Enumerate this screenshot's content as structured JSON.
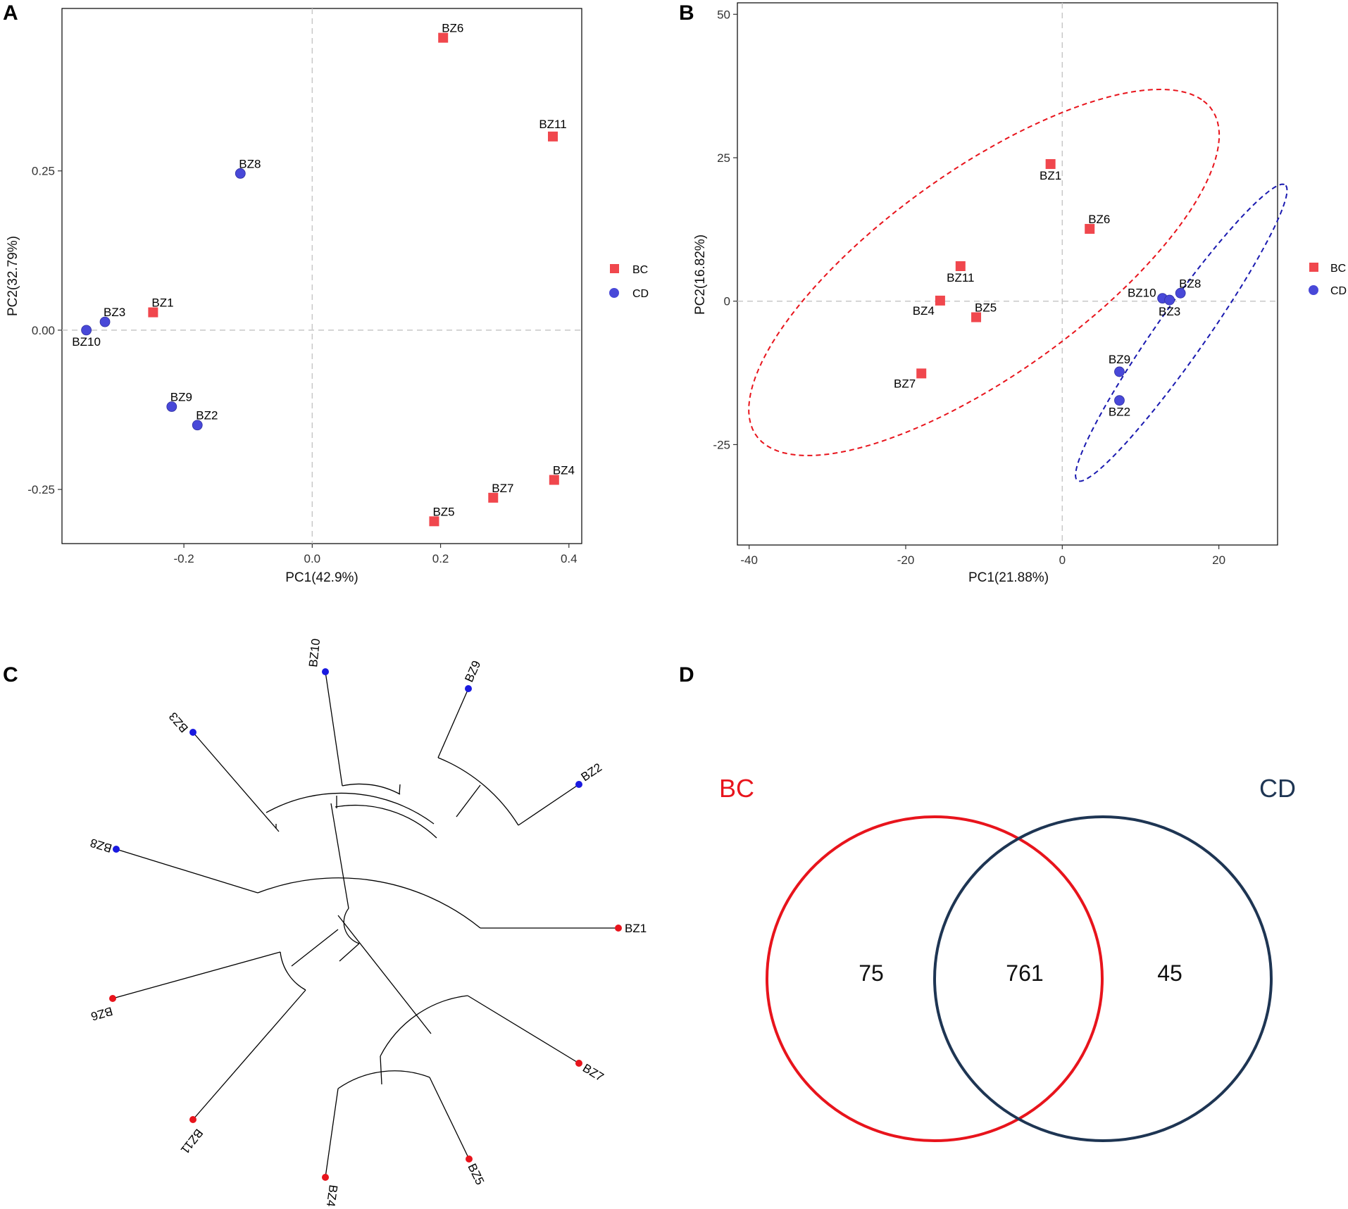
{
  "colors": {
    "BC": "#f0474d",
    "CD": "#4848d8",
    "BC_tree": "#e8141c",
    "CD_tree": "#1a1ae0",
    "venn_BC": "#e8141c",
    "venn_CD": "#1e3553"
  },
  "chart_data": [
    {
      "panel": "A",
      "type": "scatter",
      "xlabel": "PC1(42.9%)",
      "ylabel": "PC2(32.79%)",
      "xlim": [
        -0.39,
        0.42
      ],
      "ylim": [
        -0.335,
        0.505
      ],
      "xticks": [
        -0.2,
        0.0,
        0.2,
        0.4
      ],
      "xtick_labels": [
        "-0.2",
        "0.0",
        "0.2",
        "0.4"
      ],
      "yticks": [
        -0.25,
        0.0,
        0.25
      ],
      "ytick_labels": [
        "-0.25",
        "0.00",
        "0.25"
      ],
      "legend": [
        {
          "key": "BC",
          "label": "BC",
          "shape": "square"
        },
        {
          "key": "CD",
          "label": "CD",
          "shape": "circle"
        }
      ],
      "points": [
        {
          "label": "BZ6",
          "group": "BC",
          "x": 0.204,
          "y": 0.459,
          "lpos": "above-right"
        },
        {
          "label": "BZ11",
          "group": "BC",
          "x": 0.375,
          "y": 0.304,
          "lpos": "above"
        },
        {
          "label": "BZ8",
          "group": "CD",
          "x": -0.112,
          "y": 0.246,
          "lpos": "above-right"
        },
        {
          "label": "BZ1",
          "group": "BC",
          "x": -0.248,
          "y": 0.028,
          "lpos": "above-right"
        },
        {
          "label": "BZ3",
          "group": "CD",
          "x": -0.323,
          "y": 0.013,
          "lpos": "above-right"
        },
        {
          "label": "BZ10",
          "group": "CD",
          "x": -0.352,
          "y": 0.0,
          "lpos": "below"
        },
        {
          "label": "BZ9",
          "group": "CD",
          "x": -0.219,
          "y": -0.12,
          "lpos": "above-right"
        },
        {
          "label": "BZ2",
          "group": "CD",
          "x": -0.179,
          "y": -0.149,
          "lpos": "above-right"
        },
        {
          "label": "BZ4",
          "group": "BC",
          "x": 0.377,
          "y": -0.235,
          "lpos": "above-right"
        },
        {
          "label": "BZ7",
          "group": "BC",
          "x": 0.282,
          "y": -0.263,
          "lpos": "above-right"
        },
        {
          "label": "BZ5",
          "group": "BC",
          "x": 0.19,
          "y": -0.3,
          "lpos": "above-right"
        }
      ]
    },
    {
      "panel": "B",
      "type": "scatter",
      "xlabel": "PC1(21.88%)",
      "ylabel": "PC2(16.82%)",
      "xlim": [
        -41.5,
        27.5
      ],
      "ylim": [
        -42.5,
        52.0
      ],
      "xticks": [
        -40,
        -20,
        0,
        20
      ],
      "xtick_labels": [
        "-40",
        "-20",
        "0",
        "20"
      ],
      "yticks": [
        -25,
        0,
        25,
        50
      ],
      "ytick_labels": [
        "-25",
        "0",
        "25",
        "50"
      ],
      "legend": [
        {
          "key": "BC",
          "label": "BC",
          "shape": "square"
        },
        {
          "key": "CD",
          "label": "CD",
          "shape": "circle"
        }
      ],
      "ellipses": [
        {
          "group": "BC",
          "cx": -10.0,
          "cy": 5.0,
          "rx": 41.0,
          "ry": 15.5,
          "angle_deg": 47.3
        },
        {
          "group": "CD",
          "cx": 15.2,
          "cy": -5.5,
          "rx": 29.0,
          "ry": 3.4,
          "angle_deg": 63.0
        }
      ],
      "points": [
        {
          "label": "BZ1",
          "group": "BC",
          "x": -1.5,
          "y": 23.9,
          "lpos": "below"
        },
        {
          "label": "BZ6",
          "group": "BC",
          "x": 3.5,
          "y": 12.6,
          "lpos": "above-right"
        },
        {
          "label": "BZ11",
          "group": "BC",
          "x": -13.0,
          "y": 6.1,
          "lpos": "below"
        },
        {
          "label": "BZ4",
          "group": "BC",
          "x": -15.6,
          "y": 0.1,
          "lpos": "below-left"
        },
        {
          "label": "BZ5",
          "group": "BC",
          "x": -11.0,
          "y": -2.8,
          "lpos": "above-right"
        },
        {
          "label": "BZ7",
          "group": "BC",
          "x": -18.0,
          "y": -12.6,
          "lpos": "below-left"
        },
        {
          "label": "BZ8",
          "group": "CD",
          "x": 15.1,
          "y": 1.4,
          "lpos": "above-right"
        },
        {
          "label": "BZ10",
          "group": "CD",
          "x": 12.8,
          "y": 0.5,
          "lpos": "left"
        },
        {
          "label": "BZ3",
          "group": "CD",
          "x": 13.7,
          "y": 0.2,
          "lpos": "below"
        },
        {
          "label": "BZ9",
          "group": "CD",
          "x": 7.3,
          "y": -12.3,
          "lpos": "above"
        },
        {
          "label": "BZ2",
          "group": "CD",
          "x": 7.3,
          "y": -17.3,
          "lpos": "below"
        }
      ]
    },
    {
      "panel": "C",
      "type": "dendrogram",
      "layout": "circular",
      "leaves": [
        {
          "label": "BZ10",
          "group": "CD"
        },
        {
          "label": "BZ9",
          "group": "CD"
        },
        {
          "label": "BZ2",
          "group": "CD"
        },
        {
          "label": "BZ1",
          "group": "BC"
        },
        {
          "label": "BZ7",
          "group": "BC"
        },
        {
          "label": "BZ5",
          "group": "BC"
        },
        {
          "label": "BZ4",
          "group": "BC"
        },
        {
          "label": "BZ11",
          "group": "BC"
        },
        {
          "label": "BZ6",
          "group": "BC"
        },
        {
          "label": "BZ8",
          "group": "CD"
        },
        {
          "label": "BZ3",
          "group": "CD"
        }
      ]
    },
    {
      "panel": "D",
      "type": "venn",
      "sets": [
        {
          "key": "BC",
          "label": "BC",
          "only": 75
        },
        {
          "key": "CD",
          "label": "CD",
          "only": 45
        }
      ],
      "intersection": 761
    }
  ],
  "panels": {
    "A": "A",
    "B": "B",
    "C": "C",
    "D": "D"
  }
}
